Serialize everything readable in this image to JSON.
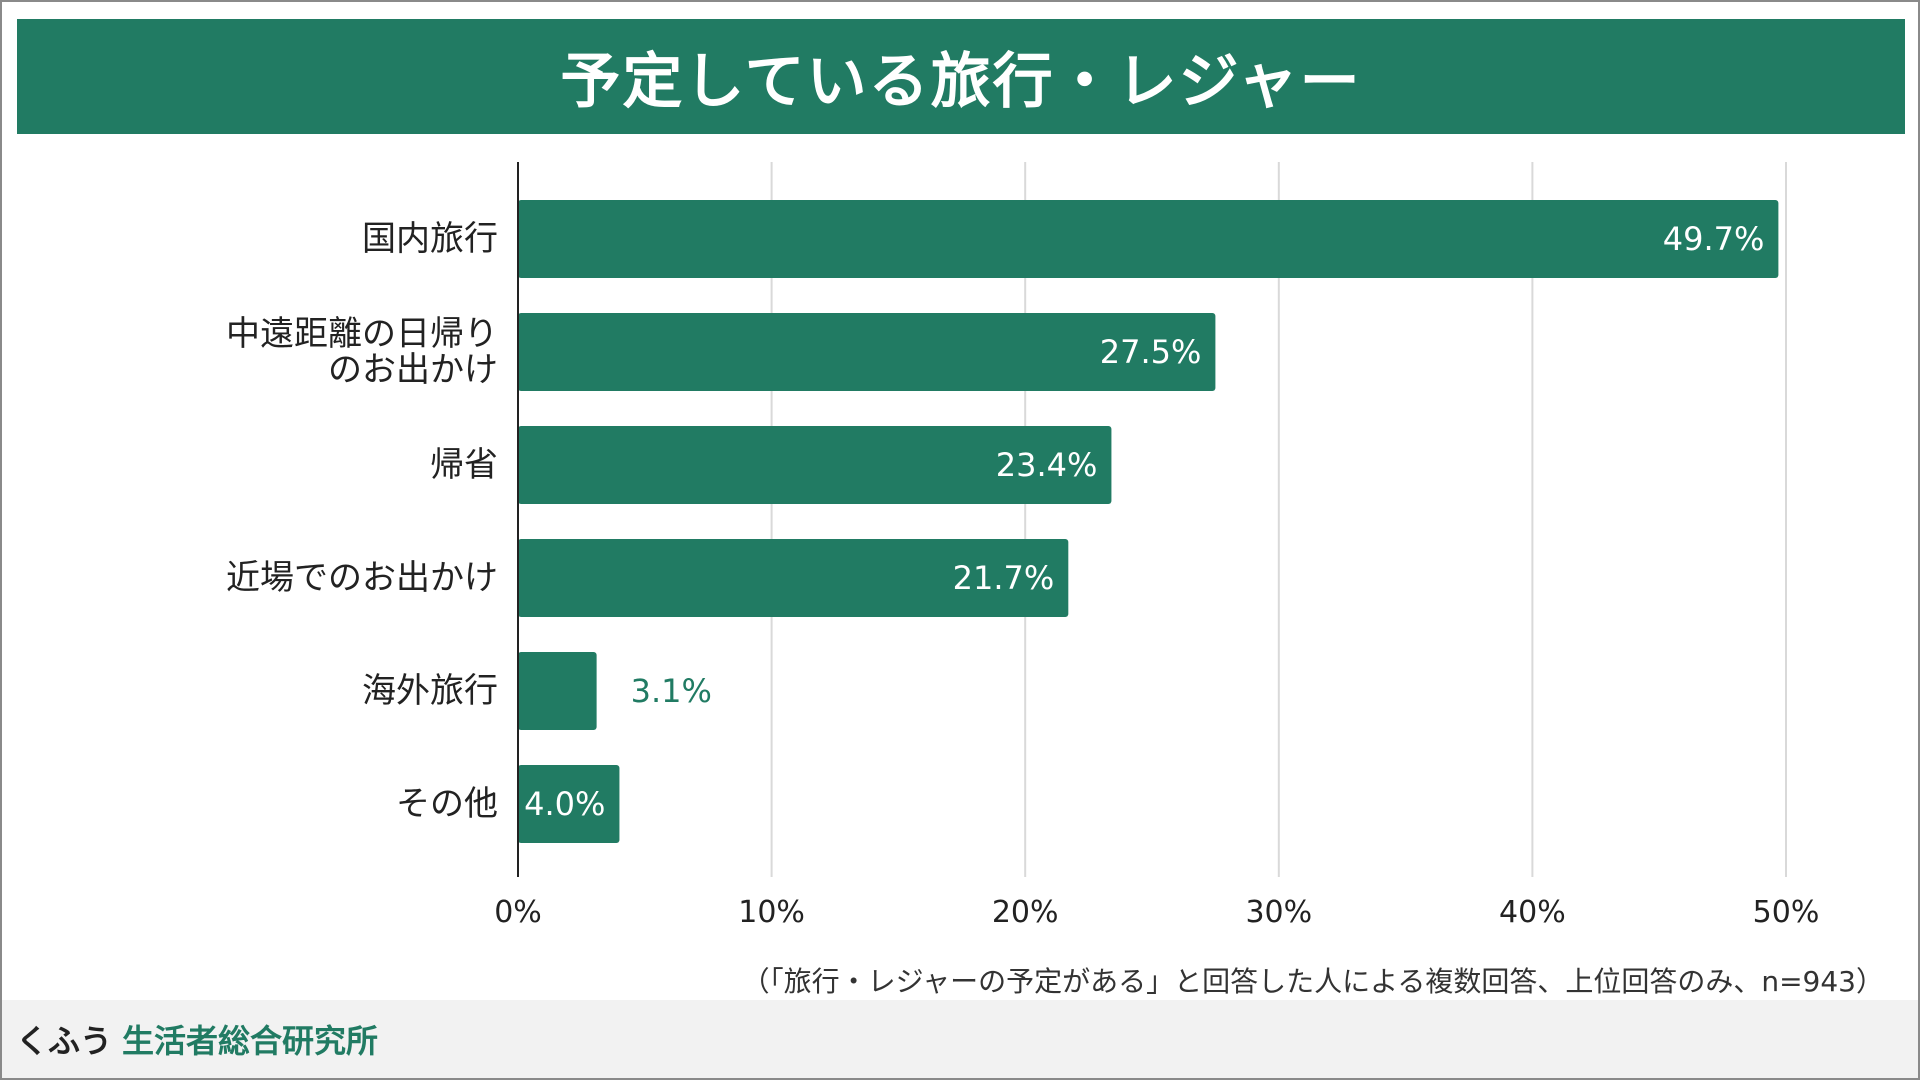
{
  "title": "予定している旅行・レジャー",
  "note": "（「旅行・レジャーの予定がある」と回答した人による複数回答、上位回答のみ、n=943）",
  "brand": {
    "part1": "くふう",
    "part2": "生活者総合研究所"
  },
  "colors": {
    "accent": "#217b63",
    "grid": "#d9d9d9",
    "axis": "#222222"
  },
  "chart_data": {
    "type": "bar",
    "orientation": "horizontal",
    "title": "予定している旅行・レジャー",
    "categories": [
      [
        "国内旅行"
      ],
      [
        "中遠距離の日帰り",
        "のお出かけ"
      ],
      [
        "帰省"
      ],
      [
        "近場でのお出かけ"
      ],
      [
        "海外旅行"
      ],
      [
        "その他"
      ]
    ],
    "values": [
      49.7,
      27.5,
      23.4,
      21.7,
      3.1,
      4.0
    ],
    "value_labels": [
      "49.7%",
      "27.5%",
      "23.4%",
      "21.7%",
      "3.1%",
      "4.0%"
    ],
    "xlim": [
      0,
      50
    ],
    "xticks": [
      0,
      10,
      20,
      30,
      40,
      50
    ],
    "xtick_labels": [
      "0%",
      "10%",
      "20%",
      "30%",
      "40%",
      "50%"
    ],
    "grid": true,
    "legend": "none"
  }
}
